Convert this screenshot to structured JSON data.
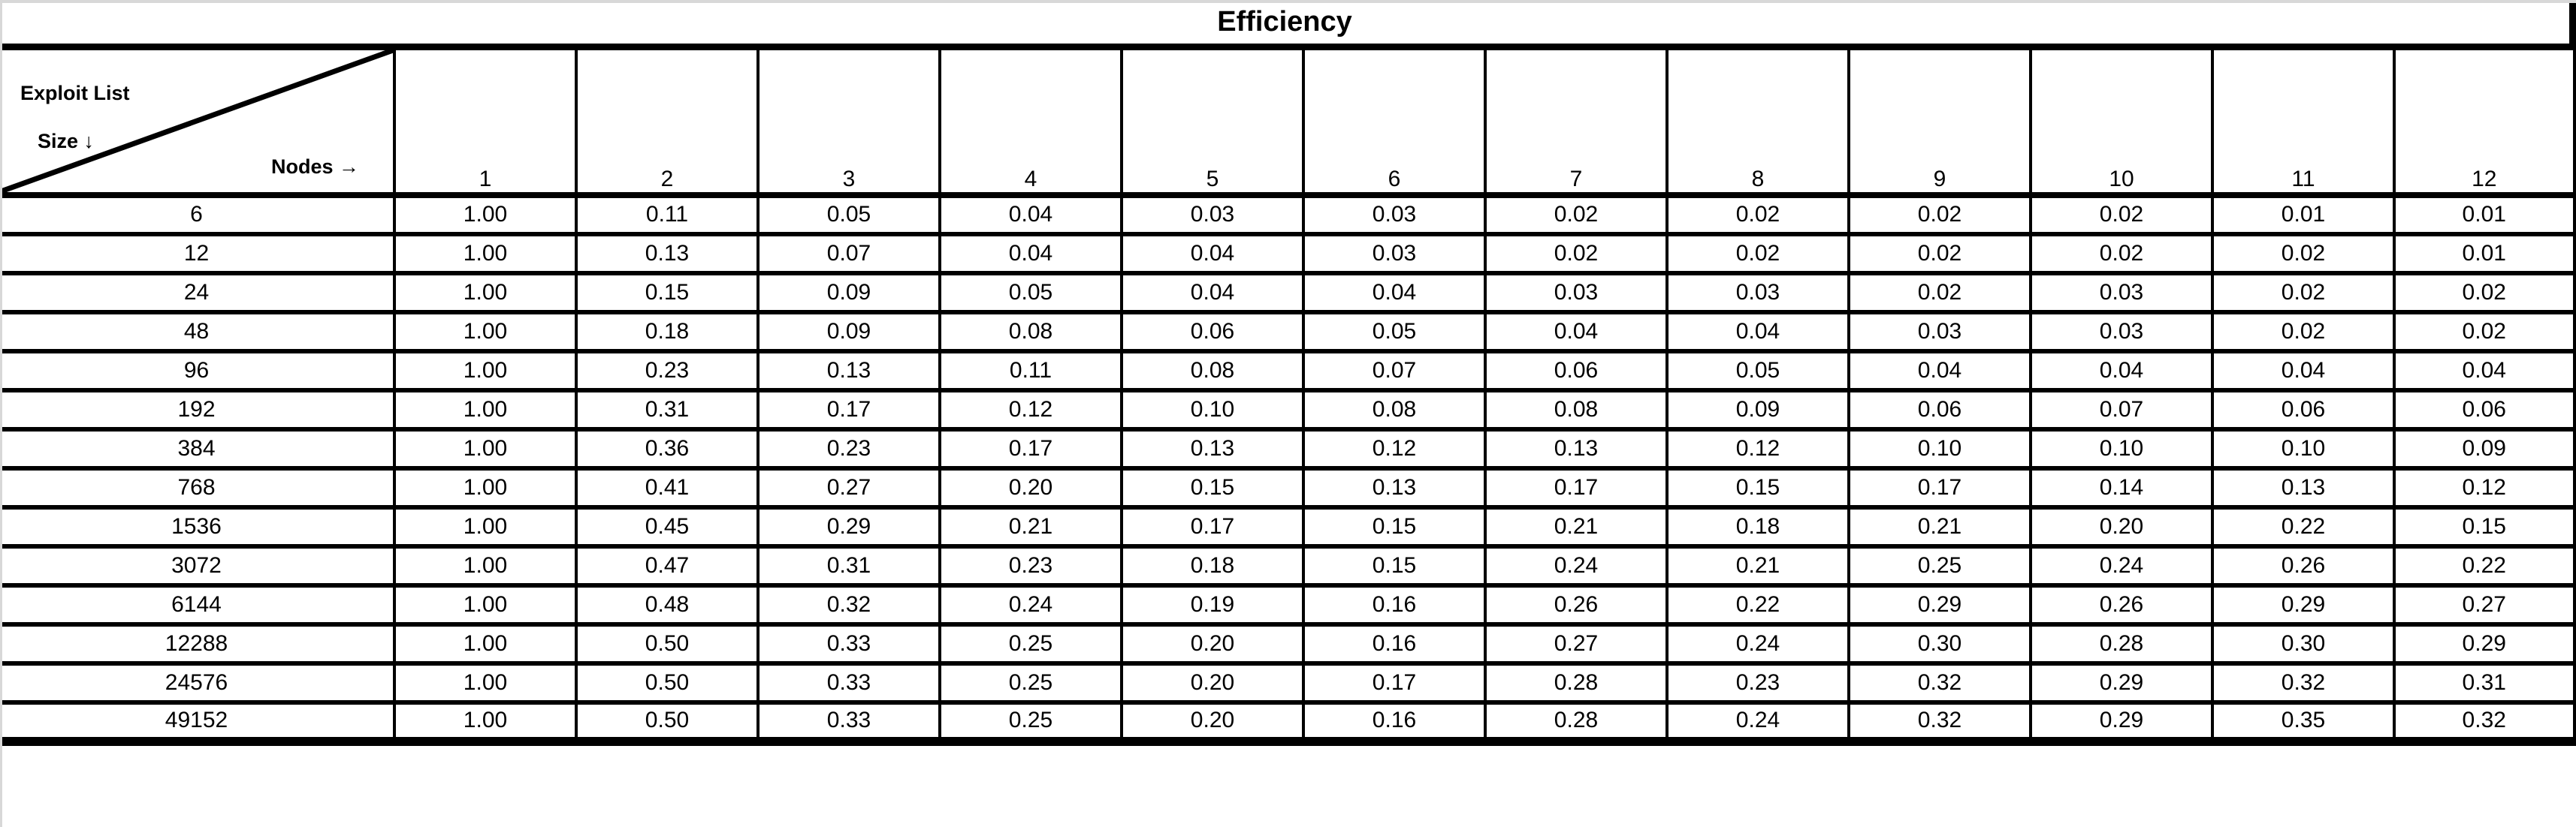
{
  "title": "Efficiency",
  "corner": {
    "row_header_line1": "Exploit List",
    "row_header_line2": "Size ↓",
    "col_header": "Nodes →"
  },
  "chart_data": {
    "type": "table",
    "title": "Efficiency",
    "row_axis_label": "Exploit List Size",
    "col_axis_label": "Nodes",
    "columns": [
      "1",
      "2",
      "3",
      "4",
      "5",
      "6",
      "7",
      "8",
      "9",
      "10",
      "11",
      "12"
    ],
    "rows": [
      {
        "size": "6",
        "values": [
          "1.00",
          "0.11",
          "0.05",
          "0.04",
          "0.03",
          "0.03",
          "0.02",
          "0.02",
          "0.02",
          "0.02",
          "0.01",
          "0.01"
        ]
      },
      {
        "size": "12",
        "values": [
          "1.00",
          "0.13",
          "0.07",
          "0.04",
          "0.04",
          "0.03",
          "0.02",
          "0.02",
          "0.02",
          "0.02",
          "0.02",
          "0.01"
        ]
      },
      {
        "size": "24",
        "values": [
          "1.00",
          "0.15",
          "0.09",
          "0.05",
          "0.04",
          "0.04",
          "0.03",
          "0.03",
          "0.02",
          "0.03",
          "0.02",
          "0.02"
        ]
      },
      {
        "size": "48",
        "values": [
          "1.00",
          "0.18",
          "0.09",
          "0.08",
          "0.06",
          "0.05",
          "0.04",
          "0.04",
          "0.03",
          "0.03",
          "0.02",
          "0.02"
        ]
      },
      {
        "size": "96",
        "values": [
          "1.00",
          "0.23",
          "0.13",
          "0.11",
          "0.08",
          "0.07",
          "0.06",
          "0.05",
          "0.04",
          "0.04",
          "0.04",
          "0.04"
        ]
      },
      {
        "size": "192",
        "values": [
          "1.00",
          "0.31",
          "0.17",
          "0.12",
          "0.10",
          "0.08",
          "0.08",
          "0.09",
          "0.06",
          "0.07",
          "0.06",
          "0.06"
        ]
      },
      {
        "size": "384",
        "values": [
          "1.00",
          "0.36",
          "0.23",
          "0.17",
          "0.13",
          "0.12",
          "0.13",
          "0.12",
          "0.10",
          "0.10",
          "0.10",
          "0.09"
        ]
      },
      {
        "size": "768",
        "values": [
          "1.00",
          "0.41",
          "0.27",
          "0.20",
          "0.15",
          "0.13",
          "0.17",
          "0.15",
          "0.17",
          "0.14",
          "0.13",
          "0.12"
        ]
      },
      {
        "size": "1536",
        "values": [
          "1.00",
          "0.45",
          "0.29",
          "0.21",
          "0.17",
          "0.15",
          "0.21",
          "0.18",
          "0.21",
          "0.20",
          "0.22",
          "0.15"
        ]
      },
      {
        "size": "3072",
        "values": [
          "1.00",
          "0.47",
          "0.31",
          "0.23",
          "0.18",
          "0.15",
          "0.24",
          "0.21",
          "0.25",
          "0.24",
          "0.26",
          "0.22"
        ]
      },
      {
        "size": "6144",
        "values": [
          "1.00",
          "0.48",
          "0.32",
          "0.24",
          "0.19",
          "0.16",
          "0.26",
          "0.22",
          "0.29",
          "0.26",
          "0.29",
          "0.27"
        ]
      },
      {
        "size": "12288",
        "values": [
          "1.00",
          "0.50",
          "0.33",
          "0.25",
          "0.20",
          "0.16",
          "0.27",
          "0.24",
          "0.30",
          "0.28",
          "0.30",
          "0.29"
        ]
      },
      {
        "size": "24576",
        "values": [
          "1.00",
          "0.50",
          "0.33",
          "0.25",
          "0.20",
          "0.17",
          "0.28",
          "0.23",
          "0.32",
          "0.29",
          "0.32",
          "0.31"
        ]
      },
      {
        "size": "49152",
        "values": [
          "1.00",
          "0.50",
          "0.33",
          "0.25",
          "0.20",
          "0.16",
          "0.28",
          "0.24",
          "0.32",
          "0.29",
          "0.35",
          "0.32"
        ]
      }
    ]
  }
}
